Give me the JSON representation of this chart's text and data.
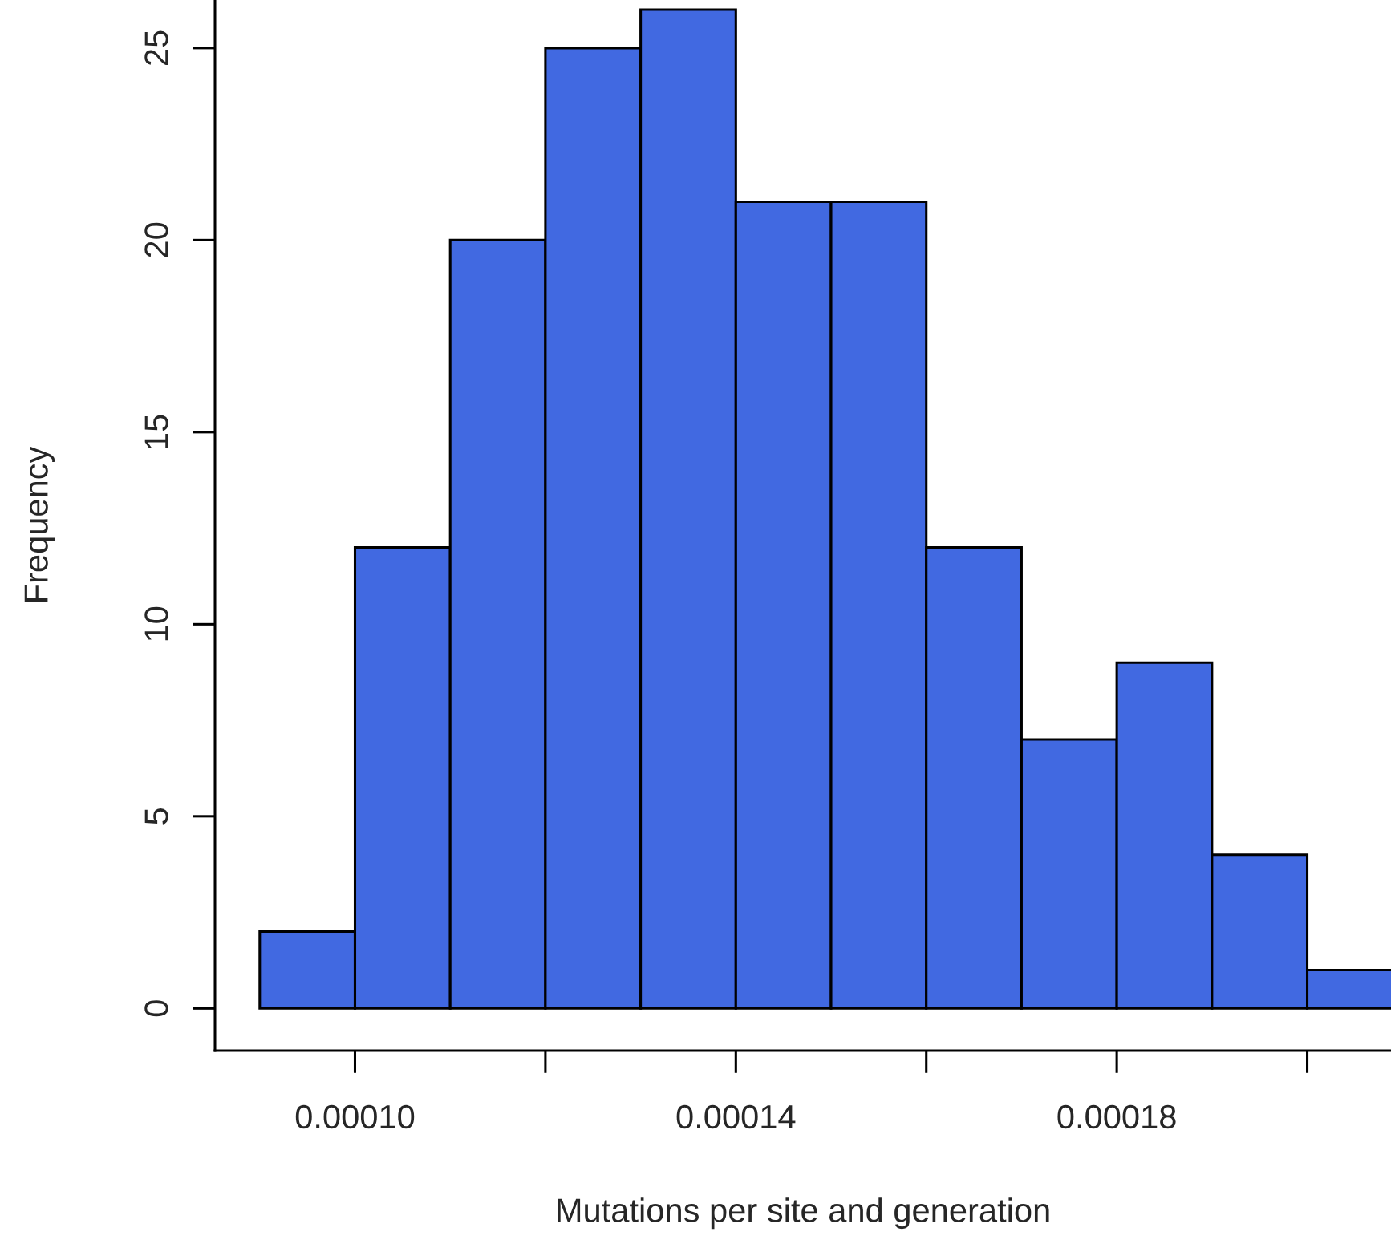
{
  "chart_data": {
    "type": "histogram",
    "xlabel": "Mutations per site and generation",
    "ylabel": "Frequency",
    "bins": [
      9e-05,
      0.0001,
      0.00011,
      0.00012,
      0.00013,
      0.00014,
      0.00015,
      0.00016,
      0.00017,
      0.00018,
      0.00019,
      0.0002,
      0.00021
    ],
    "values": [
      2,
      12,
      20,
      25,
      26,
      21,
      21,
      12,
      7,
      9,
      4,
      1
    ],
    "color": "#4169e1",
    "xlim": [
      8.53e-05,
      0.0002088
    ],
    "ylim": [
      -1.1,
      26.25
    ],
    "xticks": [
      {
        "value": 0.0001,
        "label": "0.00010"
      },
      {
        "value": 0.00012,
        "label": null
      },
      {
        "value": 0.00014,
        "label": "0.00014"
      },
      {
        "value": 0.00016,
        "label": null
      },
      {
        "value": 0.00018,
        "label": "0.00018"
      },
      {
        "value": 0.0002,
        "label": null
      }
    ],
    "yticks": [
      0,
      5,
      10,
      15,
      20,
      25
    ],
    "grid": false
  }
}
